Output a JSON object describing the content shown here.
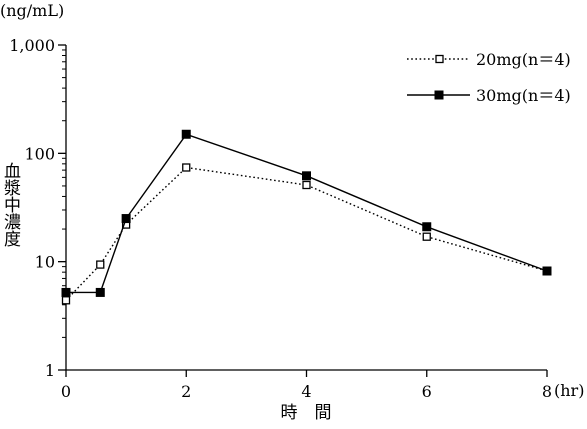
{
  "chart_data": {
    "type": "line",
    "y_unit_label": "(ng/mL)",
    "ylabel": "血漿中濃度",
    "xlabel": "時　間",
    "x_unit_label": "(hr)",
    "yscale": "log",
    "ylim": [
      1,
      1000
    ],
    "xlim": [
      0,
      8
    ],
    "x_ticks": [
      0,
      2,
      4,
      6,
      8
    ],
    "x_tick_labels": [
      "0",
      "2",
      "4",
      "6",
      "8"
    ],
    "y_ticks": [
      1,
      10,
      100,
      1000
    ],
    "y_tick_labels": [
      "1",
      "10",
      "100",
      "1,000"
    ],
    "grid": false,
    "legend_position": "top-right",
    "series": [
      {
        "name": "20mg(n＝4)",
        "line_style": "dotted",
        "marker": "open-square",
        "color": "#000000",
        "x": [
          0,
          0.57,
          1,
          2,
          4,
          6,
          8
        ],
        "y": [
          4.4,
          9.4,
          22,
          74,
          51,
          17,
          8.2
        ]
      },
      {
        "name": "30mg(n＝4)",
        "line_style": "solid",
        "marker": "filled-square",
        "color": "#000000",
        "x": [
          0,
          0.57,
          1,
          2,
          4,
          6,
          8
        ],
        "y": [
          5.2,
          5.2,
          25,
          150,
          62,
          21,
          8.2
        ]
      }
    ]
  }
}
